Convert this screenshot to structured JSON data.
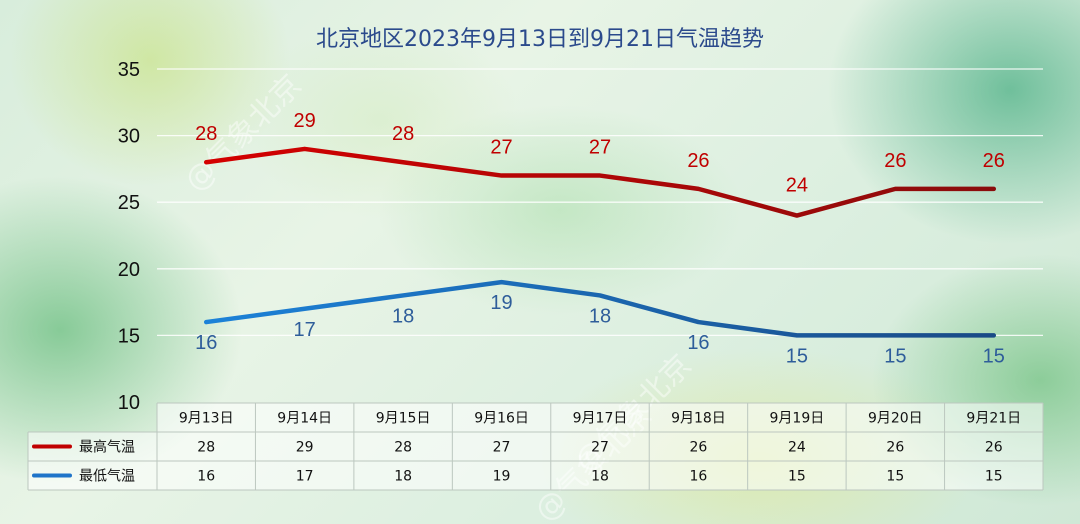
{
  "title": "北京地区2023年9月13日到9月21日气温趋势",
  "watermark": "@气象北京",
  "colors": {
    "high": "#c00000",
    "low": "#1f74c9",
    "title": "#2b4a8c"
  },
  "chart_data": {
    "type": "line",
    "title": "北京地区2023年9月13日到9月21日气温趋势",
    "categories": [
      "9月13日",
      "9月14日",
      "9月15日",
      "9月16日",
      "9月17日",
      "9月18日",
      "9月19日",
      "9月20日",
      "9月21日"
    ],
    "series": [
      {
        "name": "最高气温",
        "values": [
          28,
          29,
          28,
          27,
          27,
          26,
          24,
          26,
          26
        ],
        "color": "#c00000"
      },
      {
        "name": "最低气温",
        "values": [
          16,
          17,
          18,
          19,
          18,
          16,
          15,
          15,
          15
        ],
        "color": "#1f74c9"
      }
    ],
    "ylim": [
      10,
      35
    ],
    "yticks": [
      10,
      15,
      20,
      25,
      30,
      35
    ],
    "grid": true,
    "data_table": true,
    "xlabel": "",
    "ylabel": ""
  }
}
